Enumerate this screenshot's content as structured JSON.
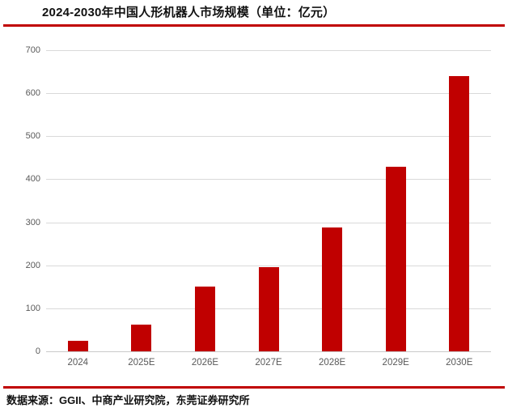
{
  "header": {
    "title": "2024-2030年中国人形机器人市场规模（单位：亿元）"
  },
  "footer": {
    "source": "数据来源：GGII、中商产业研究院，东莞证券研究所"
  },
  "colors": {
    "bar": "#c00000",
    "accent_rule": "#c00000",
    "gridline": "#d9d9d9",
    "axis_label": "#595959"
  },
  "chart_data": {
    "type": "bar",
    "title": "2024-2030年中国人形机器人市场规模（单位：亿元）",
    "unit_label": "亿元",
    "categories": [
      "2024",
      "2025E",
      "2026E",
      "2027E",
      "2028E",
      "2029E",
      "2030E"
    ],
    "values": [
      25,
      63,
      150,
      195,
      288,
      430,
      640
    ],
    "xlabel": "",
    "ylabel": "",
    "ylim": [
      0,
      700
    ],
    "ytick_step": 100,
    "yticks": [
      0,
      100,
      200,
      300,
      400,
      500,
      600,
      700
    ],
    "grid": true,
    "legend": false
  }
}
